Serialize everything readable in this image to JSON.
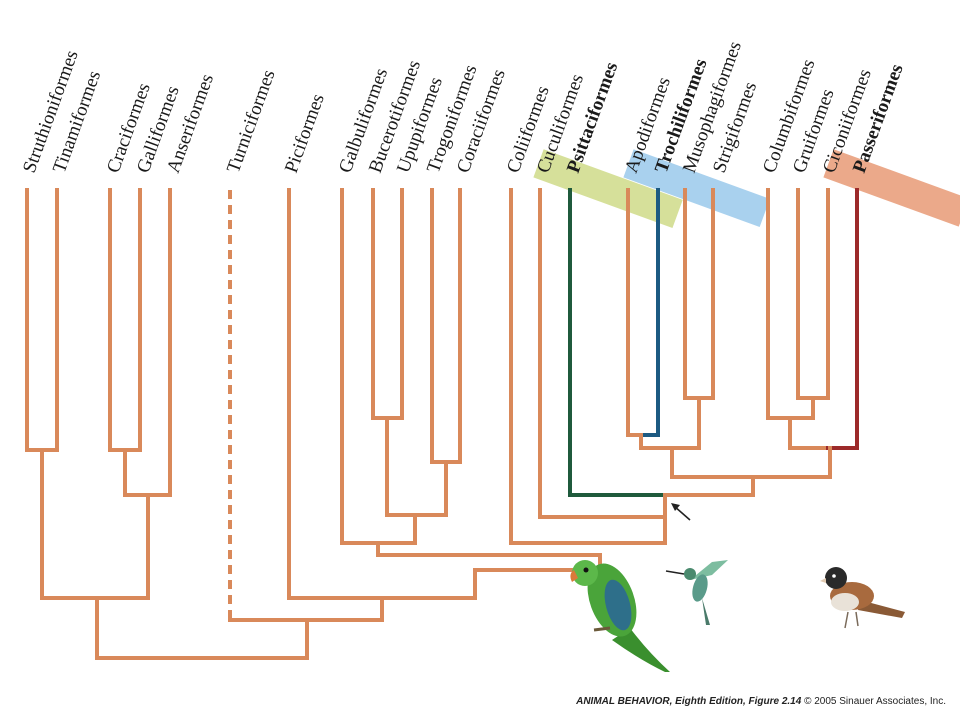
{
  "taxa": [
    "Struthioniformes",
    "Tinamiformes",
    "Craciformes",
    "Galliformes",
    "Anseriformes",
    "Turniciformes",
    "Piciformes",
    "Galbuliformes",
    "Bucerotiformes",
    "Upupiformes",
    "Trogoniformes",
    "Coraciiformes",
    "Coliiformes",
    "Cuculiformes",
    "Psittaciformes",
    "Apodiformes",
    "Trochiliformes",
    "Musophagiformes",
    "Strigiformes",
    "Columbiformes",
    "Gruiformes",
    "Ciconiiformes",
    "Passeriformes"
  ],
  "highlighted": {
    "Psittaciformes": "#d6e09a",
    "Trochiliformes": "#a9d1ee",
    "Passeriformes": "#eba98a"
  },
  "colors": {
    "branch": "#d9895a",
    "psittaciformes_branch": "#1f5a3c",
    "trochiliformes_branch": "#1c5a82",
    "passeriformes_branch": "#9c2a2a"
  },
  "dashed_taxon": "Turniciformes",
  "illustrations": [
    "parrot-illustration",
    "hummingbird-illustration",
    "sparrow-illustration"
  ],
  "credit": {
    "book": "ANIMAL BEHAVIOR, Eighth Edition, Figure 2.14",
    "copyright": "© 2005 Sinauer Associates, Inc."
  }
}
